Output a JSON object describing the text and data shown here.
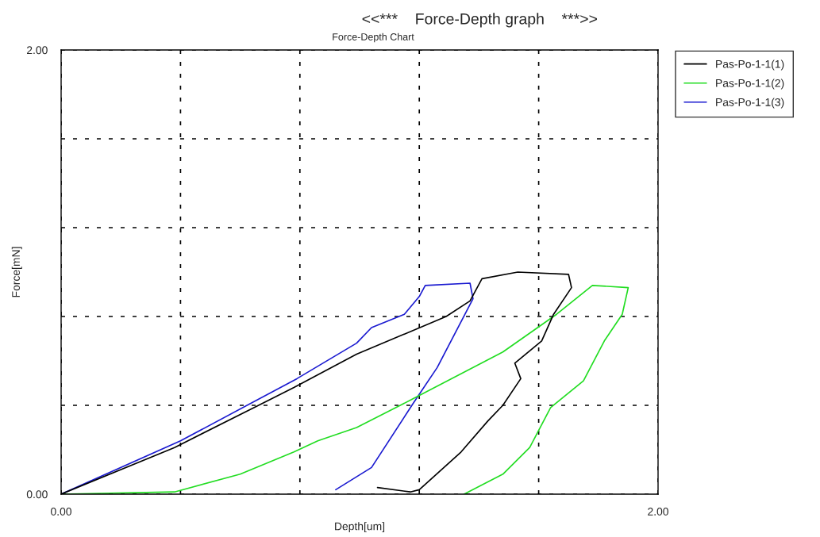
{
  "chart_data": {
    "type": "line",
    "title": "<<***    Force-Depth graph    ***>>",
    "subtitle": "Force-Depth Chart",
    "xlabel": "Depth[um]",
    "ylabel": "Force[mN]",
    "xlim": [
      0,
      2
    ],
    "ylim": [
      0,
      2
    ],
    "xticks": [
      {
        "value": 0,
        "label": "0.00"
      },
      {
        "value": 0.4,
        "label": null
      },
      {
        "value": 0.8,
        "label": null
      },
      {
        "value": 1.2,
        "label": null
      },
      {
        "value": 1.6,
        "label": null
      },
      {
        "value": 2,
        "label": "2.00"
      }
    ],
    "yticks": [
      {
        "value": 0,
        "label": "0.00"
      },
      {
        "value": 0.4,
        "label": null
      },
      {
        "value": 0.8,
        "label": null
      },
      {
        "value": 1.2,
        "label": null
      },
      {
        "value": 1.6,
        "label": null
      },
      {
        "value": 2,
        "label": "2.00"
      }
    ],
    "grid": true,
    "legend": "top right",
    "line_style": "solid",
    "marker": "none",
    "series": [
      {
        "name": "Pas-Po-1-1(1)",
        "color": "#000000",
        "x": [
          0,
          0.38,
          0.78,
          0.99,
          1.29,
          1.37,
          1.41,
          1.53,
          1.7,
          1.71,
          1.65,
          1.61,
          1.52,
          1.54,
          1.48,
          1.43,
          1.34,
          1.2,
          1.17,
          1.06
        ],
        "values": [
          0,
          0.21,
          0.48,
          0.63,
          0.8,
          0.87,
          0.97,
          1.0,
          0.99,
          0.93,
          0.81,
          0.69,
          0.59,
          0.52,
          0.4,
          0.33,
          0.19,
          0.02,
          0.01,
          0.03
        ]
      },
      {
        "name": "Pas-Po-1-1(2)",
        "color": "#22dd22",
        "x": [
          0,
          0.38,
          0.6,
          0.78,
          0.86,
          0.99,
          1.18,
          1.48,
          1.66,
          1.78,
          1.9,
          1.88,
          1.82,
          1.75,
          1.64,
          1.57,
          1.48,
          1.35
        ],
        "values": [
          0,
          0.01,
          0.09,
          0.19,
          0.24,
          0.3,
          0.43,
          0.64,
          0.81,
          0.94,
          0.93,
          0.81,
          0.69,
          0.51,
          0.39,
          0.21,
          0.09,
          0.0
        ]
      },
      {
        "name": "Pas-Po-1-1(3)",
        "color": "#1a1ad0",
        "x": [
          0,
          0.4,
          0.79,
          0.99,
          1.04,
          1.15,
          1.2,
          1.22,
          1.37,
          1.38,
          1.26,
          1.18,
          1.04,
          0.92
        ],
        "values": [
          0,
          0.24,
          0.52,
          0.68,
          0.75,
          0.81,
          0.89,
          0.94,
          0.95,
          0.88,
          0.57,
          0.41,
          0.12,
          0.02
        ]
      }
    ]
  }
}
